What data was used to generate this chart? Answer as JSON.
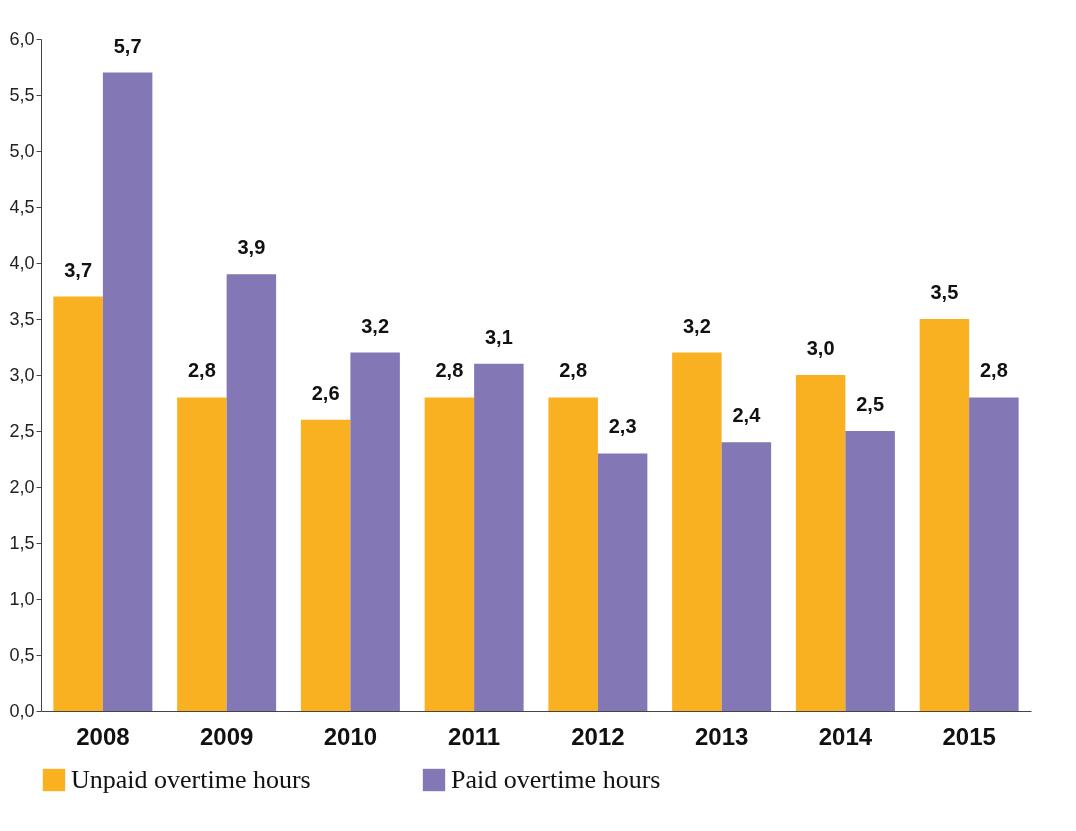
{
  "chart_data": {
    "type": "bar",
    "categories": [
      "2008",
      "2009",
      "2010",
      "2011",
      "2012",
      "2013",
      "2014",
      "2015"
    ],
    "series": [
      {
        "name": "Unpaid overtime hours",
        "color": "#f9b122",
        "values": [
          3.7,
          2.8,
          2.6,
          2.8,
          2.8,
          3.2,
          3.0,
          3.5
        ],
        "value_labels": [
          "3,7",
          "2,8",
          "2,6",
          "2,8",
          "2,8",
          "3,2",
          "3,0",
          "3,5"
        ]
      },
      {
        "name": "Paid overtime hours",
        "color": "#8477b5",
        "values": [
          5.7,
          3.9,
          3.2,
          3.1,
          2.3,
          2.4,
          2.5,
          2.8
        ],
        "value_labels": [
          "5,7",
          "3,9",
          "3,2",
          "3,1",
          "2,3",
          "2,4",
          "2,5",
          "2,8"
        ]
      }
    ],
    "ylim": [
      0,
      6
    ],
    "yticks": [
      {
        "value": 0,
        "label": "0,0"
      },
      {
        "value": 0.5,
        "label": "0,5"
      },
      {
        "value": 1,
        "label": "1,0"
      },
      {
        "value": 1.5,
        "label": "1,5"
      },
      {
        "value": 2,
        "label": "2,0"
      },
      {
        "value": 2.5,
        "label": "2,5"
      },
      {
        "value": 3,
        "label": "3,0"
      },
      {
        "value": 3.5,
        "label": "3,5"
      },
      {
        "value": 4,
        "label": "4,0"
      },
      {
        "value": 4.5,
        "label": "4,5"
      },
      {
        "value": 5,
        "label": "5,0"
      },
      {
        "value": 5.5,
        "label": "5,5"
      },
      {
        "value": 6,
        "label": "6,0"
      }
    ],
    "grid": false,
    "legend": "bottom"
  }
}
